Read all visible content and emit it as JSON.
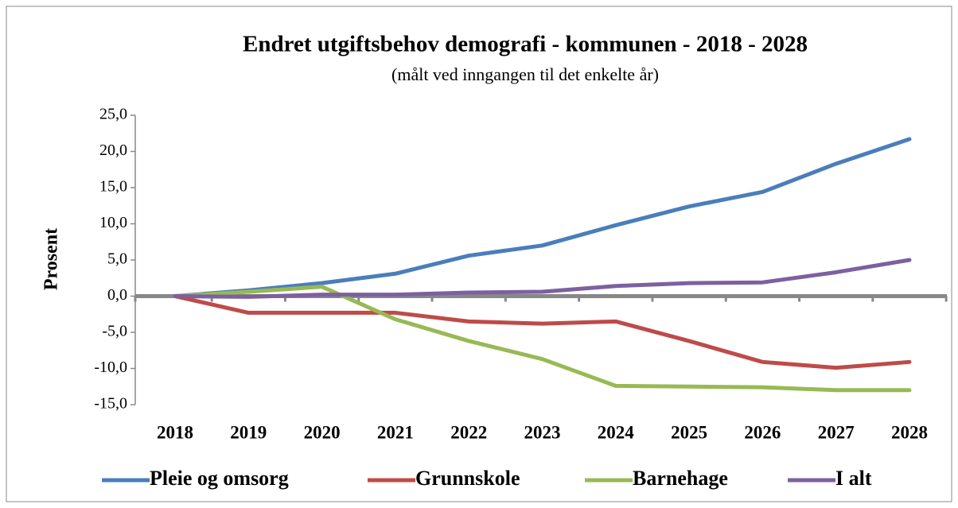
{
  "chart_data": {
    "type": "line",
    "title": "Endret utgiftsbehov demografi - kommunen - 2018 - 2028",
    "subtitle": "(målt ved inngangen til det enkelte år)",
    "y_label": "Prosent",
    "categories": [
      "2018",
      "2019",
      "2020",
      "2021",
      "2022",
      "2023",
      "2024",
      "2025",
      "2026",
      "2027",
      "2028"
    ],
    "series": [
      {
        "name": "Pleie og omsorg",
        "color": "#4a7ebb",
        "values": [
          0,
          0.8,
          1.8,
          3.1,
          5.6,
          7.0,
          9.8,
          12.4,
          14.4,
          18.3,
          21.7
        ]
      },
      {
        "name": "Grunnskole",
        "color": "#be4b48",
        "values": [
          0,
          -2.3,
          -2.3,
          -2.3,
          -3.5,
          -3.8,
          -3.5,
          -6.2,
          -9.1,
          -9.9,
          -9.1
        ]
      },
      {
        "name": "Barnehage",
        "color": "#98b954",
        "values": [
          0,
          0.6,
          1.3,
          -3.2,
          -6.2,
          -8.7,
          -12.4,
          -12.5,
          -12.6,
          -13.0,
          -13.0
        ]
      },
      {
        "name": "I alt",
        "color": "#7d60a0",
        "values": [
          0,
          -0.1,
          0.2,
          0.2,
          0.5,
          0.6,
          1.4,
          1.8,
          1.9,
          3.3,
          5.0
        ]
      }
    ],
    "ylim": [
      -15,
      25
    ],
    "yticks": [
      {
        "value": 25,
        "label": "25,0"
      },
      {
        "value": 20,
        "label": "20,0"
      },
      {
        "value": 15,
        "label": "15,0"
      },
      {
        "value": 10,
        "label": "10,0"
      },
      {
        "value": 5,
        "label": "5,0"
      },
      {
        "value": 0,
        "label": "0,0"
      },
      {
        "value": -5,
        "label": "-5,0"
      },
      {
        "value": -10,
        "label": "-10,0"
      },
      {
        "value": -15,
        "label": "-15,0"
      }
    ],
    "legend": "bottom"
  }
}
